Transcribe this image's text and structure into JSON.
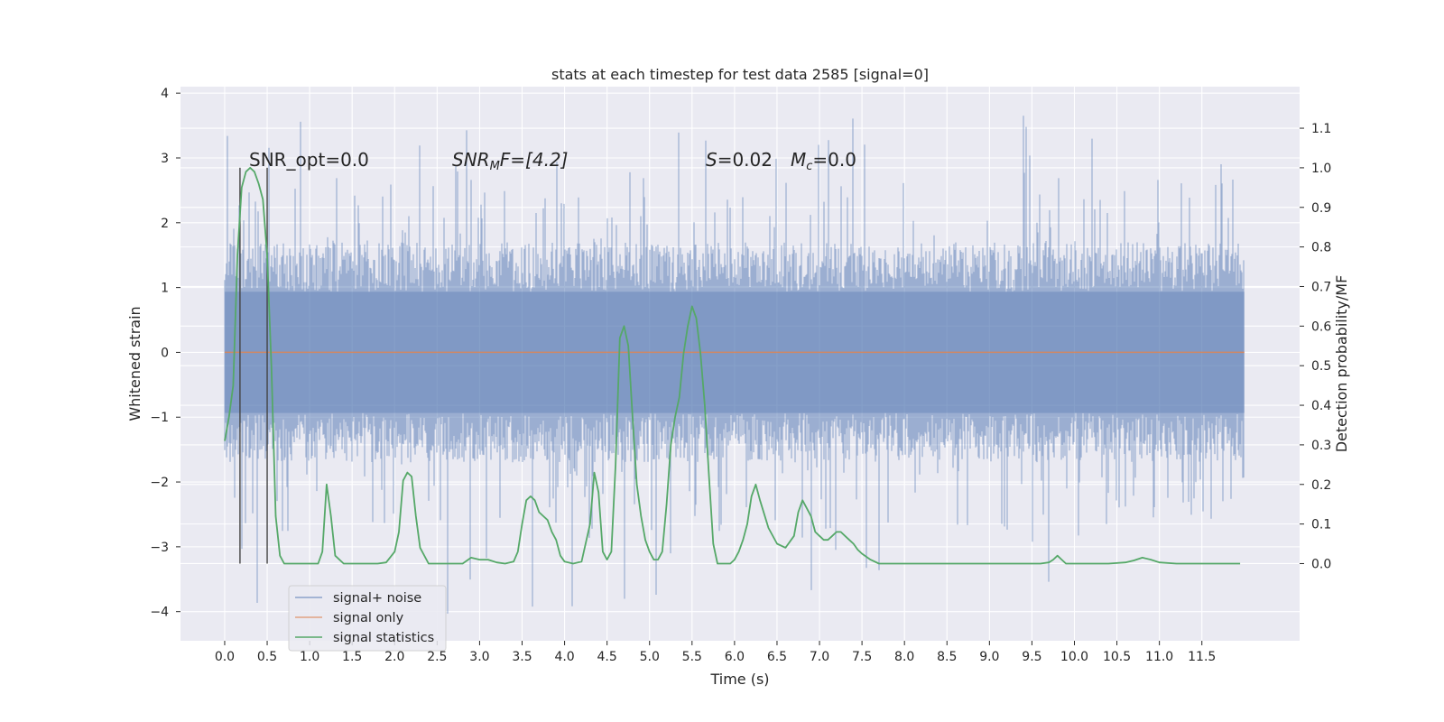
{
  "chart_data": {
    "type": "line",
    "title": "stats at each timestep for test data 2585 [signal=0]",
    "xlabel": "Time (s)",
    "ylabel_left": "Whitened strain",
    "ylabel_right": "Detection probability/MF",
    "xlim": [
      -0.52,
      12.65
    ],
    "ylim_left": [
      -4.45,
      4.1
    ],
    "ylim_right": [
      -0.195,
      1.205
    ],
    "x_ticks": [
      0.0,
      0.5,
      1.0,
      1.5,
      2.0,
      2.5,
      3.0,
      3.5,
      4.0,
      4.5,
      5.0,
      5.5,
      6.0,
      6.5,
      7.0,
      7.5,
      8.0,
      8.5,
      9.0,
      9.5,
      10.0,
      10.5,
      11.0,
      11.5
    ],
    "x_tick_labels": [
      "0.0",
      "0.5",
      "1.0",
      "1.5",
      "2.0",
      "2.5",
      "3.0",
      "3.5",
      "4.0",
      "4.5",
      "5.0",
      "5.5",
      "6.0",
      "6.5",
      "7.0",
      "7.5",
      "8.0",
      "8.5",
      "9.0",
      "9.5",
      "10.0",
      "10.5",
      "11.0",
      "11.5"
    ],
    "y_left_ticks": [
      -4,
      -3,
      -2,
      -1,
      0,
      1,
      2,
      3,
      4
    ],
    "y_left_tick_labels": [
      "−4",
      "−3",
      "−2",
      "−1",
      "0",
      "1",
      "2",
      "3",
      "4"
    ],
    "y_right_ticks": [
      0.0,
      0.1,
      0.2,
      0.3,
      0.4,
      0.5,
      0.6,
      0.7,
      0.8,
      0.9,
      1.0,
      1.1
    ],
    "y_right_tick_labels": [
      "0.0",
      "0.1",
      "0.2",
      "0.3",
      "0.4",
      "0.5",
      "0.6",
      "0.7",
      "0.8",
      "0.9",
      "1.0",
      "1.1"
    ],
    "grid": true,
    "legend_position": "bottom-left",
    "annotations": {
      "snr_opt": "SNR_opt=0.0",
      "snr_mf_base": "SNR",
      "snr_mf_sub": "M",
      "snr_mf_rest": "F=[4.2]",
      "s_label": "S",
      "s_value": "=0.02",
      "mc_base": "M",
      "mc_sub": "c",
      "mc_value": "=0.0"
    },
    "vlines_x": [
      0.18,
      0.5
    ],
    "noise": {
      "name": "signal+ noise",
      "color": "#4c72b0",
      "x_range": [
        0.0,
        12.0
      ],
      "band_low": -1.7,
      "band_high": 1.7,
      "max": 3.75,
      "min": -4.05
    },
    "signal_only": {
      "name": "signal only",
      "color": "#dd8452",
      "x_range": [
        0.0,
        12.0
      ],
      "value": 0.0
    },
    "statistics": {
      "name": "signal statistics",
      "color": "#55a868",
      "x": [
        0.0,
        0.05,
        0.1,
        0.15,
        0.2,
        0.25,
        0.3,
        0.35,
        0.4,
        0.45,
        0.5,
        0.55,
        0.6,
        0.65,
        0.7,
        0.8,
        0.9,
        1.0,
        1.1,
        1.15,
        1.2,
        1.25,
        1.3,
        1.4,
        1.5,
        1.6,
        1.7,
        1.8,
        1.9,
        2.0,
        2.05,
        2.1,
        2.15,
        2.2,
        2.25,
        2.3,
        2.4,
        2.5,
        2.6,
        2.7,
        2.8,
        2.9,
        3.0,
        3.1,
        3.2,
        3.3,
        3.4,
        3.45,
        3.5,
        3.55,
        3.6,
        3.65,
        3.7,
        3.75,
        3.8,
        3.85,
        3.9,
        3.95,
        4.0,
        4.1,
        4.2,
        4.3,
        4.35,
        4.4,
        4.45,
        4.5,
        4.55,
        4.6,
        4.65,
        4.7,
        4.75,
        4.8,
        4.85,
        4.9,
        4.95,
        5.0,
        5.05,
        5.1,
        5.15,
        5.2,
        5.25,
        5.3,
        5.35,
        5.4,
        5.45,
        5.5,
        5.55,
        5.6,
        5.65,
        5.7,
        5.75,
        5.8,
        5.85,
        5.9,
        5.95,
        6.0,
        6.05,
        6.1,
        6.15,
        6.2,
        6.25,
        6.3,
        6.4,
        6.5,
        6.6,
        6.7,
        6.75,
        6.8,
        6.85,
        6.9,
        6.95,
        7.0,
        7.05,
        7.1,
        7.15,
        7.2,
        7.25,
        7.3,
        7.35,
        7.4,
        7.45,
        7.5,
        7.6,
        7.7,
        7.8,
        7.9,
        8.0,
        8.1,
        8.2,
        8.4,
        8.6,
        8.8,
        9.0,
        9.2,
        9.4,
        9.6,
        9.7,
        9.75,
        9.8,
        9.85,
        9.9,
        10.0,
        10.2,
        10.4,
        10.6,
        10.7,
        10.8,
        10.9,
        11.0,
        11.2,
        11.4,
        11.6,
        11.8,
        11.95
      ],
      "values": [
        0.31,
        0.37,
        0.45,
        0.78,
        0.95,
        0.99,
        1.0,
        0.99,
        0.96,
        0.92,
        0.78,
        0.5,
        0.12,
        0.02,
        0.0,
        0.0,
        0.0,
        0.0,
        0.0,
        0.03,
        0.2,
        0.12,
        0.02,
        0.0,
        0.0,
        0.0,
        0.0,
        0.0,
        0.003,
        0.03,
        0.08,
        0.21,
        0.23,
        0.22,
        0.12,
        0.04,
        0.0,
        0.0,
        0.0,
        0.0,
        0.0,
        0.015,
        0.01,
        0.01,
        0.003,
        0.0,
        0.005,
        0.03,
        0.1,
        0.16,
        0.17,
        0.16,
        0.13,
        0.12,
        0.11,
        0.08,
        0.06,
        0.02,
        0.005,
        0.0,
        0.005,
        0.1,
        0.23,
        0.18,
        0.03,
        0.01,
        0.03,
        0.25,
        0.57,
        0.6,
        0.55,
        0.37,
        0.2,
        0.12,
        0.06,
        0.03,
        0.01,
        0.01,
        0.03,
        0.15,
        0.3,
        0.37,
        0.42,
        0.53,
        0.6,
        0.65,
        0.62,
        0.53,
        0.4,
        0.22,
        0.05,
        0.0,
        0.0,
        0.0,
        0.0,
        0.01,
        0.03,
        0.06,
        0.1,
        0.17,
        0.2,
        0.16,
        0.09,
        0.05,
        0.04,
        0.07,
        0.13,
        0.16,
        0.14,
        0.12,
        0.08,
        0.07,
        0.06,
        0.06,
        0.07,
        0.08,
        0.08,
        0.07,
        0.06,
        0.05,
        0.035,
        0.025,
        0.01,
        0.0,
        0.0,
        0.0,
        0.0,
        0.0,
        0.0,
        0.0,
        0.0,
        0.0,
        0.0,
        0.0,
        0.0,
        0.0,
        0.003,
        0.01,
        0.02,
        0.01,
        0.0,
        0.0,
        0.0,
        0.0,
        0.003,
        0.008,
        0.015,
        0.01,
        0.003,
        0.0,
        0.0,
        0.0,
        0.0,
        0.0
      ]
    }
  }
}
